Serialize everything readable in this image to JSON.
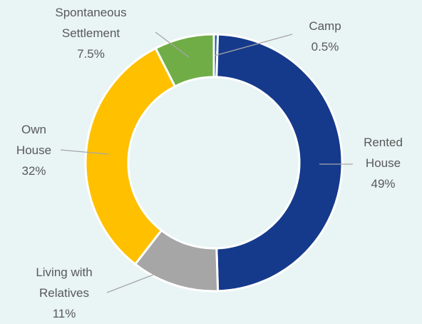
{
  "chart_data": {
    "type": "donut",
    "categories": [
      "Camp",
      "Rented House",
      "Living with Relatives",
      "Own House",
      "Spontaneous Settlement"
    ],
    "values": [
      0.5,
      49,
      11,
      32,
      7.5
    ],
    "value_labels": [
      "0.5%",
      "49%",
      "11%",
      "32%",
      "7.5%"
    ],
    "colors": [
      "#1f5fa8",
      "#153a8c",
      "#a6a6a6",
      "#ffc000",
      "#70ad47"
    ]
  }
}
